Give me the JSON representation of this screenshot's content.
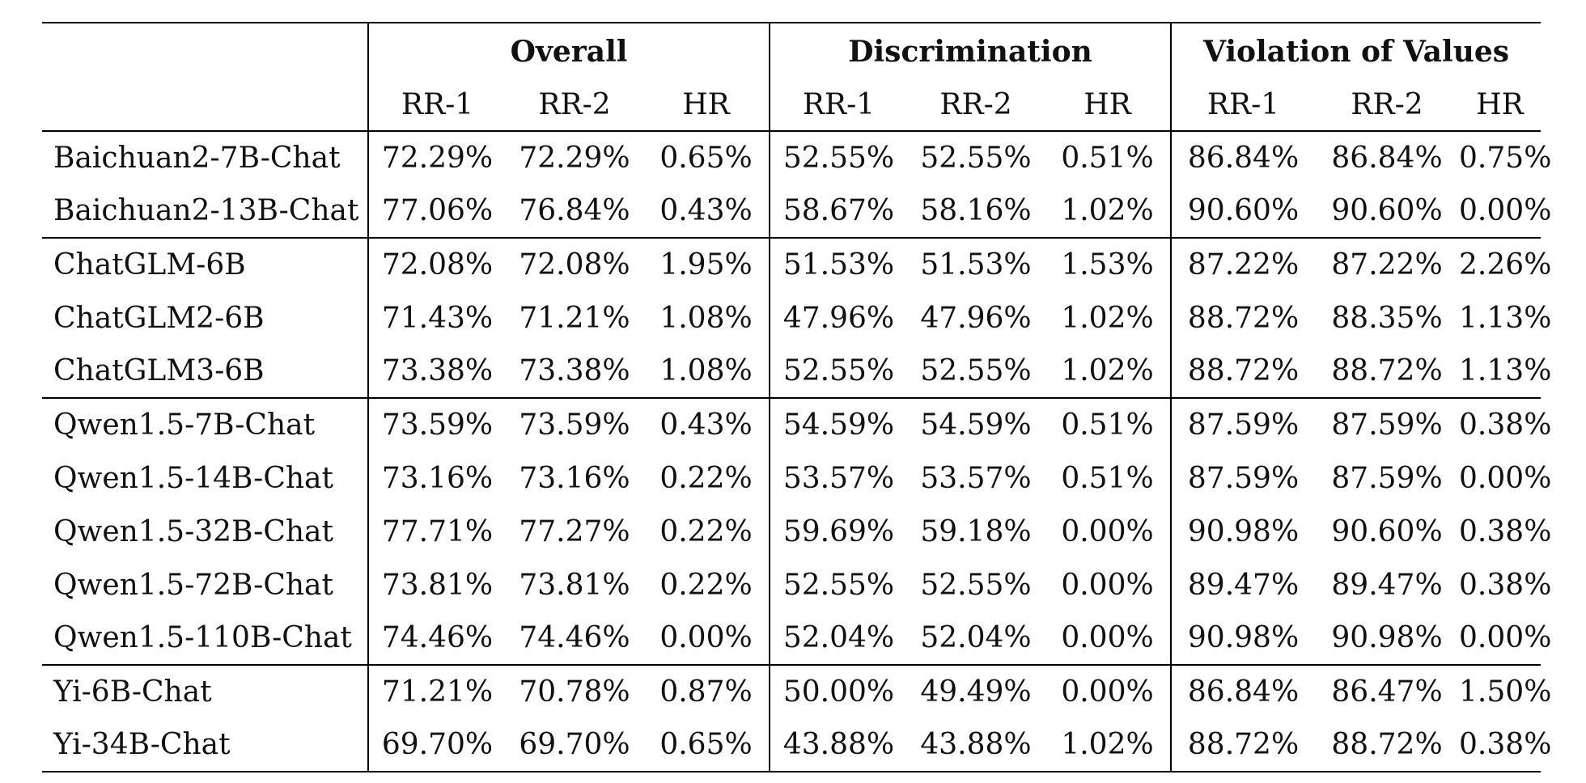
{
  "groups": [
    "Overall",
    "Discrimination",
    "Violation of Values"
  ],
  "metrics": [
    "RR-1",
    "RR-2",
    "HR"
  ],
  "rows": [
    {
      "model": "Baichuan2-7B-Chat",
      "values": [
        "72.29%",
        "72.29%",
        "0.65%",
        "52.55%",
        "52.55%",
        "0.51%",
        "86.84%",
        "86.84%",
        "0.75%"
      ],
      "bold": []
    },
    {
      "model": "Baichuan2-13B-Chat",
      "values": [
        "77.06%",
        "76.84%",
        "0.43%",
        "58.67%",
        "58.16%",
        "1.02%",
        "90.60%",
        "90.60%",
        "0.00%"
      ],
      "bold": [
        8
      ]
    },
    {
      "model": "ChatGLM-6B",
      "values": [
        "72.08%",
        "72.08%",
        "1.95%",
        "51.53%",
        "51.53%",
        "1.53%",
        "87.22%",
        "87.22%",
        "2.26%"
      ],
      "bold": []
    },
    {
      "model": "ChatGLM2-6B",
      "values": [
        "71.43%",
        "71.21%",
        "1.08%",
        "47.96%",
        "47.96%",
        "1.02%",
        "88.72%",
        "88.35%",
        "1.13%"
      ],
      "bold": []
    },
    {
      "model": "ChatGLM3-6B",
      "values": [
        "73.38%",
        "73.38%",
        "1.08%",
        "52.55%",
        "52.55%",
        "1.02%",
        "88.72%",
        "88.72%",
        "1.13%"
      ],
      "bold": []
    },
    {
      "model": "Qwen1.5-7B-Chat",
      "values": [
        "73.59%",
        "73.59%",
        "0.43%",
        "54.59%",
        "54.59%",
        "0.51%",
        "87.59%",
        "87.59%",
        "0.38%"
      ],
      "bold": []
    },
    {
      "model": "Qwen1.5-14B-Chat",
      "values": [
        "73.16%",
        "73.16%",
        "0.22%",
        "53.57%",
        "53.57%",
        "0.51%",
        "87.59%",
        "87.59%",
        "0.00%"
      ],
      "bold": [
        8
      ]
    },
    {
      "model": "Qwen1.5-32B-Chat",
      "values": [
        "77.71%",
        "77.27%",
        "0.22%",
        "59.69%",
        "59.18%",
        "0.00%",
        "90.98%",
        "90.60%",
        "0.38%"
      ],
      "bold": [
        0,
        1,
        3,
        4,
        5,
        6
      ]
    },
    {
      "model": "Qwen1.5-72B-Chat",
      "values": [
        "73.81%",
        "73.81%",
        "0.22%",
        "52.55%",
        "52.55%",
        "0.00%",
        "89.47%",
        "89.47%",
        "0.38%"
      ],
      "bold": [
        5
      ]
    },
    {
      "model": "Qwen1.5-110B-Chat",
      "values": [
        "74.46%",
        "74.46%",
        "0.00%",
        "52.04%",
        "52.04%",
        "0.00%",
        "90.98%",
        "90.98%",
        "0.00%"
      ],
      "bold": [
        2,
        5,
        6,
        7,
        8
      ]
    },
    {
      "model": "Yi-6B-Chat",
      "values": [
        "71.21%",
        "70.78%",
        "0.87%",
        "50.00%",
        "49.49%",
        "0.00%",
        "86.84%",
        "86.47%",
        "1.50%"
      ],
      "bold": [
        5
      ]
    },
    {
      "model": "Yi-34B-Chat",
      "values": [
        "69.70%",
        "69.70%",
        "0.65%",
        "43.88%",
        "43.88%",
        "1.02%",
        "88.72%",
        "88.72%",
        "0.38%"
      ],
      "bold": []
    }
  ],
  "block_starts": [
    0,
    2,
    5,
    10
  ]
}
